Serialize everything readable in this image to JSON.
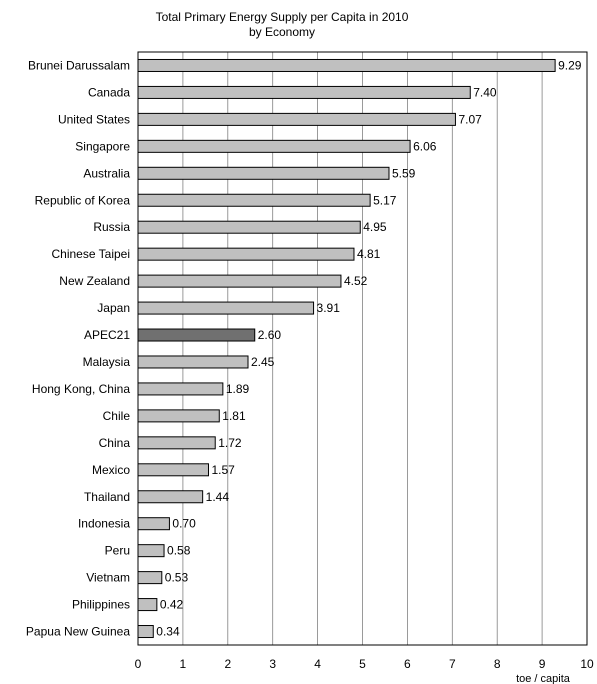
{
  "chart_data": {
    "type": "bar",
    "orientation": "horizontal",
    "title": [
      "Total Primary Energy Supply per Capita in 2010",
      "by Economy"
    ],
    "xlabel": "toe / capita",
    "ylabel": "",
    "xlim": [
      0,
      10
    ],
    "xticks": [
      "0",
      "1",
      "2",
      "3",
      "4",
      "5",
      "6",
      "7",
      "8",
      "9",
      "10"
    ],
    "grid": true,
    "legend": "none",
    "categories": [
      "Brunei Darussalam",
      "Canada",
      "United States",
      "Singapore",
      "Australia",
      "Republic of Korea",
      "Russia",
      "Chinese Taipei",
      "New Zealand",
      "Japan",
      "APEC21",
      "Malaysia",
      "Hong Kong, China",
      "Chile",
      "China",
      "Mexico",
      "Thailand",
      "Indonesia",
      "Peru",
      "Vietnam",
      "Philippines",
      "Papua New Guinea"
    ],
    "values": [
      9.29,
      7.4,
      7.07,
      6.06,
      5.59,
      5.17,
      4.95,
      4.81,
      4.52,
      3.91,
      2.6,
      2.45,
      1.89,
      1.81,
      1.72,
      1.57,
      1.44,
      0.7,
      0.58,
      0.53,
      0.42,
      0.34
    ],
    "value_labels": [
      "9.29",
      "7.40",
      "7.07",
      "6.06",
      "5.59",
      "5.17",
      "4.95",
      "4.81",
      "4.52",
      "3.91",
      "2.60",
      "2.45",
      "1.89",
      "1.81",
      "1.72",
      "1.57",
      "1.44",
      "0.70",
      "0.58",
      "0.53",
      "0.42",
      "0.34"
    ],
    "highlight_category": "APEC21",
    "colors": {
      "bar": "#c0c0c0",
      "highlight": "#707070",
      "outline": "#000000",
      "grid": "#808080"
    }
  }
}
